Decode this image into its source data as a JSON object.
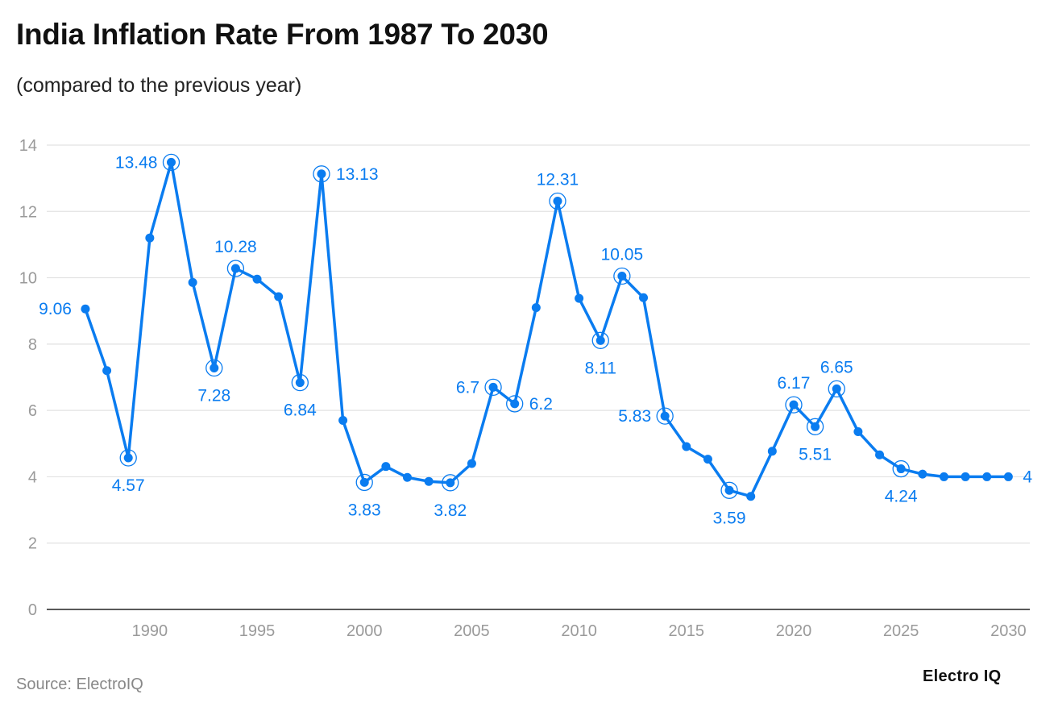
{
  "header": {
    "title": "India Inflation Rate From 1987 To 2030",
    "subtitle": "(compared to the previous year)"
  },
  "footer": {
    "source": "Source: ElectroIQ",
    "brand": "Electro IQ"
  },
  "colors": {
    "line": "#0a7cf0",
    "label": "#0a7cf0",
    "grid": "#e2e2e2",
    "axis": "#222222"
  },
  "chart_data": {
    "type": "line",
    "title": "India Inflation Rate From 1987 To 2030",
    "subtitle": "(compared to the previous year)",
    "xlabel": "",
    "ylabel": "",
    "xlim": [
      1985.2,
      2031
    ],
    "ylim": [
      0,
      14
    ],
    "y_ticks": [
      0,
      2,
      4,
      6,
      8,
      10,
      12,
      14
    ],
    "x_ticks": [
      1990,
      1995,
      2000,
      2005,
      2010,
      2015,
      2020,
      2025,
      2030
    ],
    "grid": true,
    "series": [
      {
        "name": "Inflation rate",
        "x": [
          1987,
          1988,
          1989,
          1990,
          1991,
          1992,
          1993,
          1994,
          1995,
          1996,
          1997,
          1998,
          1999,
          2000,
          2001,
          2002,
          2003,
          2004,
          2005,
          2006,
          2007,
          2008,
          2009,
          2010,
          2011,
          2012,
          2013,
          2014,
          2015,
          2016,
          2017,
          2018,
          2019,
          2020,
          2021,
          2022,
          2023,
          2024,
          2025,
          2026,
          2027,
          2028,
          2029,
          2030
        ],
        "values": [
          9.06,
          7.2,
          4.57,
          11.2,
          13.48,
          9.86,
          7.28,
          10.28,
          9.96,
          9.43,
          6.84,
          13.13,
          5.7,
          3.83,
          4.31,
          3.98,
          3.86,
          3.82,
          4.4,
          6.7,
          6.2,
          9.1,
          12.31,
          9.38,
          8.11,
          10.05,
          9.4,
          5.83,
          4.91,
          4.53,
          3.59,
          3.41,
          4.77,
          6.17,
          5.51,
          6.65,
          5.36,
          4.66,
          4.24,
          4.08,
          4.0,
          4.0,
          4.0,
          4.0
        ]
      }
    ],
    "data_labels": [
      {
        "x": 1987,
        "text": "9.06",
        "pos": "left",
        "ring": false
      },
      {
        "x": 1989,
        "text": "4.57",
        "pos": "below",
        "ring": true
      },
      {
        "x": 1991,
        "text": "13.48",
        "pos": "left",
        "ring": true
      },
      {
        "x": 1993,
        "text": "7.28",
        "pos": "below",
        "ring": true
      },
      {
        "x": 1994,
        "text": "10.28",
        "pos": "above",
        "ring": true
      },
      {
        "x": 1997,
        "text": "6.84",
        "pos": "below",
        "ring": true
      },
      {
        "x": 1998,
        "text": "13.13",
        "pos": "right",
        "ring": true
      },
      {
        "x": 2000,
        "text": "3.83",
        "pos": "below",
        "ring": true
      },
      {
        "x": 2004,
        "text": "3.82",
        "pos": "below",
        "ring": true
      },
      {
        "x": 2006,
        "text": "6.7",
        "pos": "left",
        "ring": true
      },
      {
        "x": 2007,
        "text": "6.2",
        "pos": "right",
        "ring": true
      },
      {
        "x": 2009,
        "text": "12.31",
        "pos": "above",
        "ring": true
      },
      {
        "x": 2011,
        "text": "8.11",
        "pos": "below",
        "ring": true
      },
      {
        "x": 2012,
        "text": "10.05",
        "pos": "above",
        "ring": true
      },
      {
        "x": 2014,
        "text": "5.83",
        "pos": "left",
        "ring": true
      },
      {
        "x": 2017,
        "text": "3.59",
        "pos": "below",
        "ring": true
      },
      {
        "x": 2020,
        "text": "6.17",
        "pos": "above",
        "ring": true
      },
      {
        "x": 2021,
        "text": "5.51",
        "pos": "below",
        "ring": true
      },
      {
        "x": 2022,
        "text": "6.65",
        "pos": "above",
        "ring": true
      },
      {
        "x": 2025,
        "text": "4.24",
        "pos": "below",
        "ring": true
      },
      {
        "x": 2030,
        "text": "4",
        "pos": "right",
        "ring": false
      }
    ]
  }
}
